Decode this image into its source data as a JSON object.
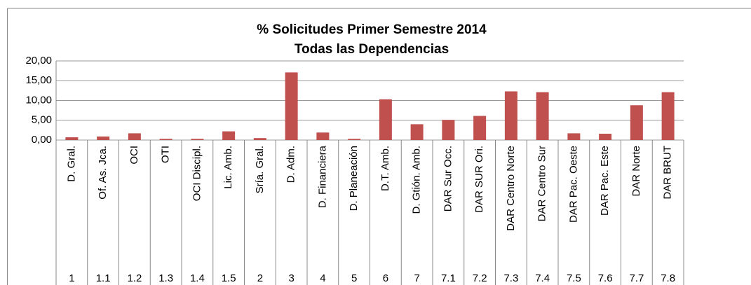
{
  "chart_data": {
    "type": "bar",
    "title": "% Solicitudes Primer Semestre  2014",
    "subtitle": "Todas las Dependencias",
    "categories": [
      "D. Gral.",
      "Of. As. Jca.",
      "OCI",
      "OTI",
      "OCI Discipl.",
      "Lic. Amb.",
      "Sría. Gral.",
      "D. Adm.",
      "D. Financiera",
      "D. Planeación",
      "D.T. Amb.",
      "D. Gtión. Amb.",
      "DAR Sur Occ.",
      "DAR SUR Ori.",
      "DAR Centro Norte",
      "DAR Centro Sur",
      "DAR Pac. Oeste",
      "DAR Pac. Este",
      "DAR Norte",
      "DAR BRUT"
    ],
    "codes": [
      "1",
      "1.1",
      "1.2",
      "1.3",
      "1.4",
      "1.5",
      "2",
      "3",
      "4",
      "5",
      "6",
      "7",
      "7.1",
      "7.2",
      "7.3",
      "7.4",
      "7.5",
      "7.6",
      "7.7",
      "7.8"
    ],
    "values": [
      0.7,
      0.9,
      1.7,
      0.3,
      0.3,
      2.2,
      0.5,
      17.1,
      1.9,
      0.3,
      10.3,
      4.0,
      5.1,
      6.1,
      12.3,
      12.1,
      1.7,
      1.6,
      8.8,
      12.1
    ],
    "color": "#c0504d",
    "ylim": [
      0,
      20
    ],
    "yticks": [
      {
        "value": 0,
        "label": "0,00"
      },
      {
        "value": 5,
        "label": "5,00"
      },
      {
        "value": 10,
        "label": "10,00"
      },
      {
        "value": 15,
        "label": "15,00"
      },
      {
        "value": 20,
        "label": "20,00"
      }
    ],
    "grid": true
  }
}
